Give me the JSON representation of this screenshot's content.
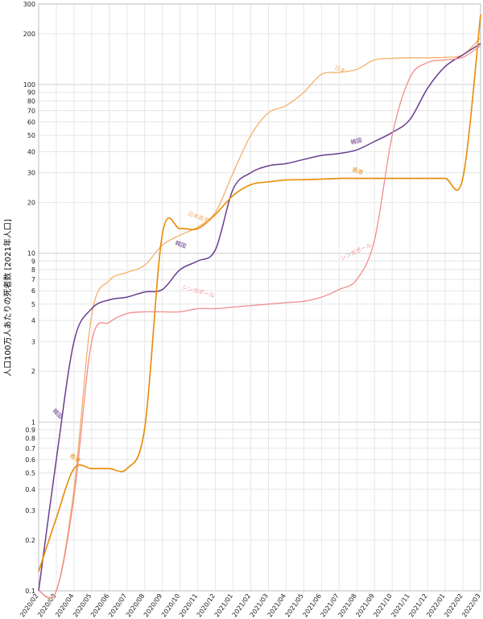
{
  "chart_data": {
    "type": "line",
    "ylabel": "人口100万人あたりの死者数 [2021年人口]",
    "y_scale": "log",
    "ylim": [
      0.1,
      300
    ],
    "y_ticks": [
      0.1,
      0.2,
      0.3,
      0.4,
      0.5,
      0.6,
      0.7,
      0.8,
      0.9,
      1,
      2,
      3,
      4,
      5,
      6,
      7,
      8,
      9,
      10,
      20,
      30,
      40,
      50,
      60,
      70,
      80,
      90,
      100,
      200,
      300
    ],
    "x_tick_labels": [
      "2020/02",
      "2020/03",
      "2020/04",
      "2020/05",
      "2020/06",
      "2020/07",
      "2020/08",
      "2020/09",
      "2020/10",
      "2020/11",
      "2020/12",
      "2021/01",
      "2021/02",
      "2021/03",
      "2021/04",
      "2021/05",
      "2021/06",
      "2021/07",
      "2021/08",
      "2021/09",
      "2021/10",
      "2021/11",
      "2021/12",
      "2022/01",
      "2022/02",
      "2022/03"
    ],
    "grid": true,
    "series": [
      {
        "name": "日本",
        "color": "#f5b06a",
        "width": 1.3,
        "x": [
          "2020/02",
          "2020/03",
          "2020/04",
          "2020/05",
          "2020/06",
          "2020/07",
          "2020/08",
          "2020/09",
          "2020/10",
          "2020/11",
          "2020/12",
          "2021/01",
          "2021/02",
          "2021/03",
          "2021/04",
          "2021/05",
          "2021/06",
          "2021/07",
          "2021/08",
          "2021/09",
          "2021/10",
          "2021/11",
          "2021/12",
          "2022/01",
          "2022/02",
          "2022/03"
        ],
        "values": [
          0.1,
          0.1,
          0.4,
          4.3,
          6.9,
          7.7,
          8.5,
          11.2,
          12.8,
          14.3,
          17.5,
          30,
          50,
          68,
          75,
          90,
          115,
          118,
          123,
          140,
          143,
          144,
          144,
          145,
          150,
          190
        ]
      },
      {
        "name": "韓国",
        "color": "#6a3d8f",
        "width": 1.5,
        "x": [
          "2020/02",
          "2020/03",
          "2020/04",
          "2020/05",
          "2020/06",
          "2020/07",
          "2020/08",
          "2020/09",
          "2020/10",
          "2020/11",
          "2020/12",
          "2021/01",
          "2021/02",
          "2021/03",
          "2021/04",
          "2021/05",
          "2021/06",
          "2021/07",
          "2021/08",
          "2021/09",
          "2021/10",
          "2021/11",
          "2021/12",
          "2022/01",
          "2022/02",
          "2022/03"
        ],
        "values": [
          0.08,
          0.6,
          3.0,
          4.7,
          5.3,
          5.5,
          5.9,
          6.1,
          8.0,
          9.0,
          10.5,
          24,
          30,
          33,
          34,
          36,
          38,
          39,
          41,
          46,
          52,
          62,
          95,
          128,
          150,
          175
        ]
      },
      {
        "name": "香港",
        "color": "#e8900f",
        "width": 1.7,
        "x": [
          "2020/02",
          "2020/03",
          "2020/04",
          "2020/05",
          "2020/06",
          "2020/07",
          "2020/08",
          "2020/09",
          "2020/10",
          "2020/11",
          "2020/12",
          "2021/01",
          "2021/02",
          "2021/03",
          "2021/04",
          "2021/05",
          "2021/06",
          "2021/07",
          "2021/08",
          "2021/09",
          "2021/10",
          "2021/11",
          "2021/12",
          "2022/01",
          "2022/02",
          "2022/03"
        ],
        "values": [
          0.13,
          0.27,
          0.53,
          0.53,
          0.53,
          0.53,
          0.92,
          13,
          14,
          14,
          17,
          22,
          25.5,
          26.5,
          27.2,
          27.3,
          27.5,
          27.8,
          27.8,
          27.8,
          27.8,
          27.8,
          27.8,
          27.8,
          28,
          260
        ]
      },
      {
        "name": "シンガポール",
        "color": "#f08d8d",
        "width": 1.3,
        "x": [
          "2020/02",
          "2020/03",
          "2020/04",
          "2020/05",
          "2020/06",
          "2020/07",
          "2020/08",
          "2020/09",
          "2020/10",
          "2020/11",
          "2020/12",
          "2021/01",
          "2021/02",
          "2021/03",
          "2021/04",
          "2021/05",
          "2021/06",
          "2021/07",
          "2021/08",
          "2021/09",
          "2021/10",
          "2021/11",
          "2021/12",
          "2022/01",
          "2022/02",
          "2022/03"
        ],
        "values": [
          0.1,
          0.1,
          0.36,
          3.0,
          3.9,
          4.4,
          4.5,
          4.5,
          4.5,
          4.7,
          4.7,
          4.8,
          4.9,
          5.0,
          5.1,
          5.2,
          5.5,
          6.1,
          7.0,
          12,
          50,
          110,
          135,
          140,
          145,
          170
        ]
      }
    ],
    "annotations": [
      {
        "text": "日本",
        "series": 0,
        "x": "2021/07",
        "y": 120,
        "rotate": 25
      },
      {
        "text": "日本香港",
        "series": 0,
        "x": "2020/11",
        "y": 16,
        "rotate": 20
      },
      {
        "text": "韓国",
        "series": 1,
        "x": "2021/08",
        "y": 45,
        "rotate": -15
      },
      {
        "text": "韓国",
        "series": 1,
        "x": "2020/10",
        "y": 11,
        "rotate": 20
      },
      {
        "text": "韓国",
        "series": 1,
        "x": "2020/03",
        "y": 1.1,
        "rotate": 45
      },
      {
        "text": "香港",
        "series": 2,
        "x": "2021/08",
        "y": 30,
        "rotate": 20
      },
      {
        "text": "香港",
        "series": 2,
        "x": "2020/04",
        "y": 0.6,
        "rotate": 35
      },
      {
        "text": "シンガポール",
        "series": 3,
        "x": "2021/08",
        "y": 10,
        "rotate": -25
      },
      {
        "text": "シンガポール",
        "series": 3,
        "x": "2020/11",
        "y": 5.8,
        "rotate": 15
      }
    ]
  }
}
